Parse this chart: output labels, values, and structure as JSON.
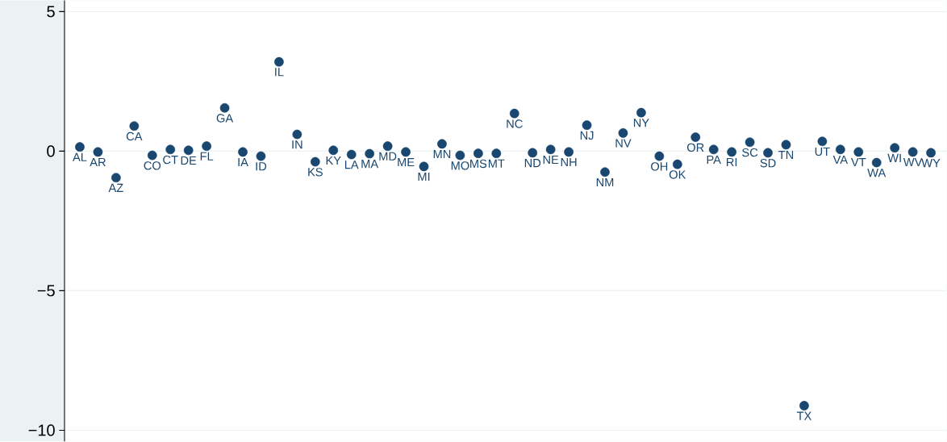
{
  "chart_data": {
    "type": "scatter",
    "categories": [
      "AL",
      "AR",
      "AZ",
      "CA",
      "CO",
      "CT",
      "DE",
      "FL",
      "GA",
      "IA",
      "ID",
      "IL",
      "IN",
      "KS",
      "KY",
      "LA",
      "MA",
      "MD",
      "ME",
      "MI",
      "MN",
      "MO",
      "MS",
      "MT",
      "NC",
      "ND",
      "NE",
      "NH",
      "NJ",
      "NM",
      "NV",
      "NY",
      "OH",
      "OK",
      "OR",
      "PA",
      "RI",
      "SC",
      "SD",
      "TN",
      "TX",
      "UT",
      "VA",
      "VT",
      "WA",
      "WI",
      "WV",
      "WY"
    ],
    "values": [
      0.15,
      -0.03,
      -0.95,
      0.9,
      -0.15,
      0.06,
      0.03,
      0.18,
      1.55,
      -0.03,
      -0.18,
      3.2,
      0.6,
      -0.38,
      0.03,
      -0.12,
      -0.09,
      0.18,
      -0.03,
      -0.55,
      0.26,
      -0.15,
      -0.08,
      -0.08,
      1.35,
      -0.06,
      0.06,
      -0.03,
      0.93,
      -0.75,
      0.65,
      1.38,
      -0.18,
      -0.47,
      0.5,
      0.06,
      -0.03,
      0.32,
      -0.06,
      0.23,
      -9.12,
      0.35,
      0.06,
      -0.03,
      -0.41,
      0.12,
      -0.03,
      -0.06
    ],
    "color": "#1a476f",
    "marker": "circle",
    "ylim": [
      -10.4,
      5.4
    ],
    "yticks": [
      {
        "value": -10,
        "label": "−10"
      },
      {
        "value": -5,
        "label": "−5"
      },
      0,
      5
    ],
    "grid": "y",
    "tick_labels": "y"
  }
}
